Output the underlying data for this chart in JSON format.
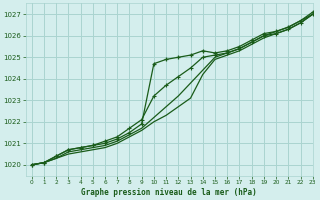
{
  "hours": [
    0,
    1,
    2,
    3,
    4,
    5,
    6,
    7,
    8,
    9,
    10,
    11,
    12,
    13,
    14,
    15,
    16,
    17,
    18,
    19,
    20,
    21,
    22,
    23
  ],
  "line_a": [
    1020.0,
    1020.1,
    1020.4,
    1020.7,
    1020.8,
    1020.9,
    1021.0,
    1021.2,
    1021.5,
    1021.9,
    1024.7,
    1024.9,
    1025.0,
    1025.1,
    1025.3,
    1025.2,
    1025.3,
    1025.5,
    1025.8,
    1026.1,
    1026.2,
    1026.4,
    1026.7,
    1027.1
  ],
  "line_b": [
    1020.0,
    1020.1,
    1020.3,
    1020.6,
    1020.7,
    1020.8,
    1020.9,
    1021.1,
    1021.4,
    1021.7,
    1022.2,
    1022.7,
    1023.2,
    1023.8,
    1024.4,
    1025.0,
    1025.2,
    1025.4,
    1025.7,
    1026.0,
    1026.2,
    1026.4,
    1026.7,
    1027.0
  ],
  "line_c": [
    1020.0,
    1020.1,
    1020.3,
    1020.5,
    1020.6,
    1020.7,
    1020.8,
    1021.0,
    1021.3,
    1021.6,
    1022.0,
    1022.3,
    1022.7,
    1023.1,
    1024.2,
    1024.9,
    1025.1,
    1025.3,
    1025.6,
    1025.9,
    1026.1,
    1026.3,
    1026.6,
    1027.0
  ],
  "line_d": [
    1020.0,
    1020.1,
    1020.4,
    1020.7,
    1020.8,
    1020.9,
    1021.1,
    1021.3,
    1021.7,
    1022.1,
    1023.2,
    1023.7,
    1024.1,
    1024.5,
    1025.0,
    1025.1,
    1025.2,
    1025.4,
    1025.7,
    1026.0,
    1026.1,
    1026.3,
    1026.6,
    1027.0
  ],
  "background_color": "#d4eeed",
  "grid_color": "#aad4d0",
  "line_color": "#1a5c1a",
  "text_color": "#1a5c1a",
  "xlabel": "Graphe pression niveau de la mer (hPa)",
  "ylim": [
    1019.5,
    1027.5
  ],
  "xlim": [
    -0.5,
    23
  ],
  "yticks": [
    1020,
    1021,
    1022,
    1023,
    1024,
    1025,
    1026,
    1027
  ],
  "xticks": [
    0,
    1,
    2,
    3,
    4,
    5,
    6,
    7,
    8,
    9,
    10,
    11,
    12,
    13,
    14,
    15,
    16,
    17,
    18,
    19,
    20,
    21,
    22,
    23
  ]
}
